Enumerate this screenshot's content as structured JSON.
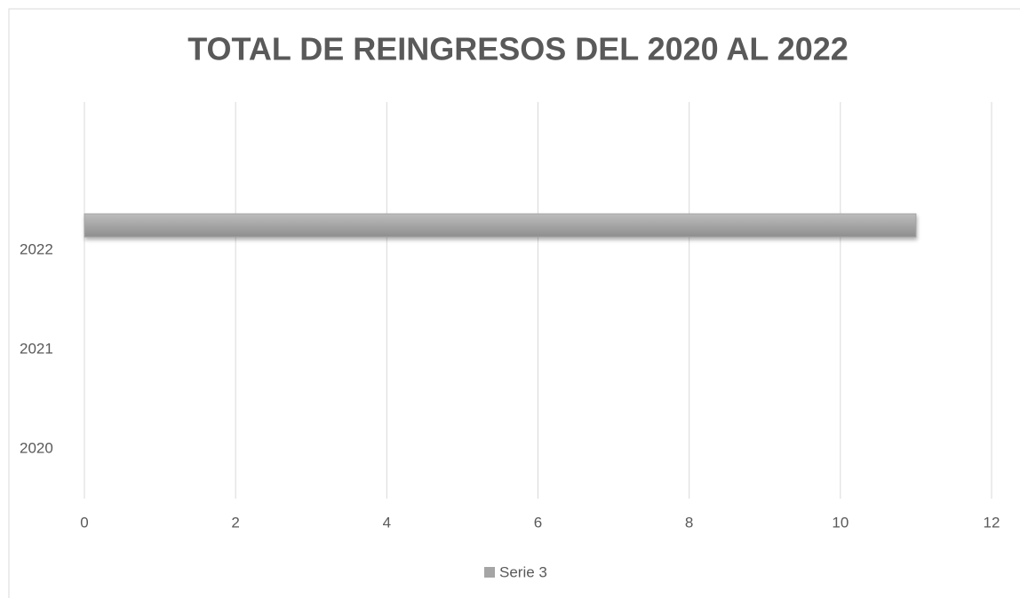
{
  "chart_data": {
    "type": "hbar",
    "title": "TOTAL DE REINGRESOS DEL 2020 AL 2022",
    "categories": [
      "2020",
      "2021",
      "2022"
    ],
    "series": [
      {
        "name": "Serie 3",
        "color": "#a5a5a5",
        "values": [
          null,
          null,
          11
        ]
      }
    ],
    "xlim": [
      0,
      12
    ],
    "xticks": [
      0,
      2,
      4,
      6,
      8,
      10,
      12
    ],
    "grid": true,
    "legend": "bottom"
  }
}
